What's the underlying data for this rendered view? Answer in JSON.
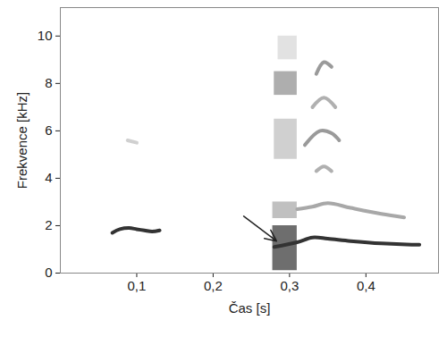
{
  "chart_data": {
    "type": "spectrogram",
    "x_label": "Čas [s]",
    "y_label": "Frekvence [kHz]",
    "xlim": [
      0,
      0.495
    ],
    "ylim": [
      0,
      11.2
    ],
    "xticks": [
      {
        "value": 0.1,
        "label": "0,1"
      },
      {
        "value": 0.2,
        "label": "0,2"
      },
      {
        "value": 0.3,
        "label": "0,3"
      },
      {
        "value": 0.4,
        "label": "0,4"
      }
    ],
    "yticks": [
      0,
      2,
      4,
      6,
      8,
      10
    ],
    "grid": false,
    "series": [
      {
        "type": "area",
        "color": "#555555",
        "x": [
          0.278,
          0.31
        ],
        "y0": [
          0.1,
          0.1
        ],
        "values": [
          2.0,
          2.0
        ]
      },
      {
        "type": "area",
        "color": "#b5b5b5",
        "x": [
          0.278,
          0.31
        ],
        "y0": [
          2.3,
          2.3
        ],
        "values": [
          3.0,
          3.0
        ]
      },
      {
        "type": "area",
        "color": "#c8c8c8",
        "x": [
          0.28,
          0.31
        ],
        "y0": [
          4.8,
          4.8
        ],
        "values": [
          6.5,
          6.5
        ]
      },
      {
        "type": "area",
        "color": "#a0a0a0",
        "x": [
          0.28,
          0.31
        ],
        "y0": [
          7.5,
          7.5
        ],
        "values": [
          8.5,
          8.5
        ]
      },
      {
        "type": "area",
        "color": "#dddddd",
        "x": [
          0.285,
          0.31
        ],
        "y0": [
          9.0,
          9.0
        ],
        "values": [
          10.0,
          10.0
        ]
      },
      {
        "type": "line",
        "color": "#333333",
        "x": [
          0.068,
          0.078,
          0.09,
          0.1,
          0.11,
          0.12,
          0.13
        ],
        "values": [
          1.7,
          1.85,
          1.9,
          1.85,
          1.8,
          1.75,
          1.8
        ]
      },
      {
        "type": "line",
        "color": "#d0d0d0",
        "x": [
          0.088,
          0.1
        ],
        "values": [
          5.6,
          5.5
        ]
      },
      {
        "type": "line",
        "color": "#333333",
        "x": [
          0.28,
          0.31,
          0.33,
          0.35,
          0.38,
          0.42,
          0.46,
          0.47
        ],
        "values": [
          1.1,
          1.3,
          1.5,
          1.45,
          1.35,
          1.25,
          1.2,
          1.2
        ]
      },
      {
        "type": "line",
        "color": "#a8a8a8",
        "x": [
          0.31,
          0.33,
          0.35,
          0.38,
          0.42,
          0.45
        ],
        "values": [
          2.7,
          2.8,
          2.95,
          2.75,
          2.5,
          2.35
        ]
      },
      {
        "type": "line",
        "color": "#b0b0b0",
        "x": [
          0.335,
          0.345,
          0.355
        ],
        "values": [
          4.3,
          4.5,
          4.3
        ]
      },
      {
        "type": "line",
        "color": "#9a9a9a",
        "x": [
          0.32,
          0.34,
          0.355,
          0.365
        ],
        "values": [
          5.4,
          6.0,
          5.9,
          5.6
        ]
      },
      {
        "type": "line",
        "color": "#b0b0b0",
        "x": [
          0.33,
          0.345,
          0.36
        ],
        "values": [
          7.0,
          7.4,
          7.0
        ]
      },
      {
        "type": "line",
        "color": "#9a9a9a",
        "x": [
          0.335,
          0.345,
          0.355
        ],
        "values": [
          8.4,
          8.9,
          8.7
        ]
      }
    ],
    "arrow": {
      "x1": 0.24,
      "y1": 2.4,
      "x2": 0.283,
      "y2": 1.35
    }
  }
}
